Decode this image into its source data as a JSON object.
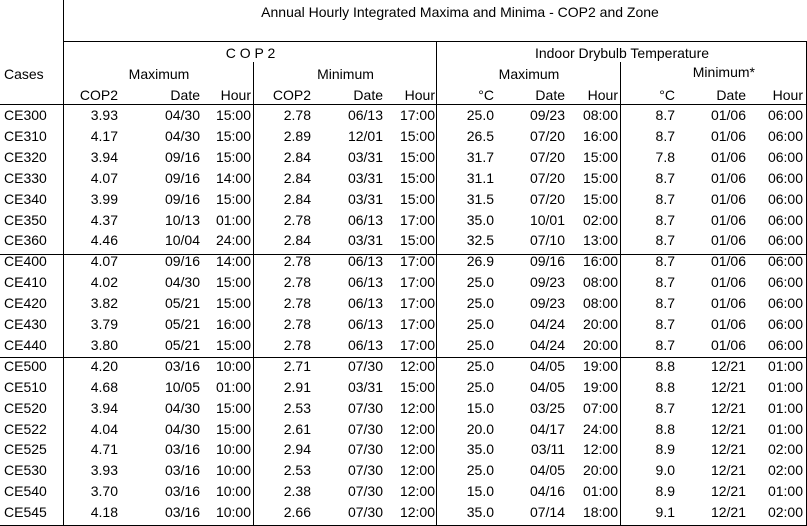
{
  "title": "Annual Hourly Integrated Maxima and Minima - COP2 and Zone",
  "groups": {
    "cop2": "C O P 2",
    "temp": "Indoor Drybulb Temperature"
  },
  "cases_label": "Cases",
  "subgroups": {
    "cop_max": "Maximum",
    "cop_min": "Minimum",
    "temp_max": "Maximum",
    "temp_min": "Minimum*"
  },
  "columns": [
    "COP2",
    "Date",
    "Hour",
    "COP2",
    "Date",
    "Hour",
    "°C",
    "Date",
    "Hour",
    "°C",
    "Date",
    "Hour"
  ],
  "rows": [
    [
      "CE300",
      "3.93",
      "04/30",
      "15:00",
      "2.78",
      "06/13",
      "17:00",
      "25.0",
      "09/23",
      "08:00",
      "8.7",
      "01/06",
      "06:00"
    ],
    [
      "CE310",
      "4.17",
      "04/30",
      "15:00",
      "2.89",
      "12/01",
      "15:00",
      "26.5",
      "07/20",
      "16:00",
      "8.7",
      "01/06",
      "06:00"
    ],
    [
      "CE320",
      "3.94",
      "09/16",
      "15:00",
      "2.84",
      "03/31",
      "15:00",
      "31.7",
      "07/20",
      "15:00",
      "7.8",
      "01/06",
      "06:00"
    ],
    [
      "CE330",
      "4.07",
      "09/16",
      "14:00",
      "2.84",
      "03/31",
      "15:00",
      "31.1",
      "07/20",
      "15:00",
      "8.7",
      "01/06",
      "06:00"
    ],
    [
      "CE340",
      "3.99",
      "09/16",
      "15:00",
      "2.84",
      "03/31",
      "15:00",
      "31.5",
      "07/20",
      "15:00",
      "8.7",
      "01/06",
      "06:00"
    ],
    [
      "CE350",
      "4.37",
      "10/13",
      "01:00",
      "2.78",
      "06/13",
      "17:00",
      "35.0",
      "10/01",
      "02:00",
      "8.7",
      "01/06",
      "06:00"
    ],
    [
      "CE360",
      "4.46",
      "10/04",
      "24:00",
      "2.84",
      "03/31",
      "15:00",
      "32.5",
      "07/10",
      "13:00",
      "8.7",
      "01/06",
      "06:00"
    ],
    [
      "CE400",
      "4.07",
      "09/16",
      "14:00",
      "2.78",
      "06/13",
      "17:00",
      "26.9",
      "09/16",
      "16:00",
      "8.7",
      "01/06",
      "06:00"
    ],
    [
      "CE410",
      "4.02",
      "04/30",
      "15:00",
      "2.78",
      "06/13",
      "17:00",
      "25.0",
      "09/23",
      "08:00",
      "8.7",
      "01/06",
      "06:00"
    ],
    [
      "CE420",
      "3.82",
      "05/21",
      "15:00",
      "2.78",
      "06/13",
      "17:00",
      "25.0",
      "09/23",
      "08:00",
      "8.7",
      "01/06",
      "06:00"
    ],
    [
      "CE430",
      "3.79",
      "05/21",
      "16:00",
      "2.78",
      "06/13",
      "17:00",
      "25.0",
      "04/24",
      "20:00",
      "8.7",
      "01/06",
      "06:00"
    ],
    [
      "CE440",
      "3.80",
      "05/21",
      "15:00",
      "2.78",
      "06/13",
      "17:00",
      "25.0",
      "04/24",
      "20:00",
      "8.7",
      "01/06",
      "06:00"
    ],
    [
      "CE500",
      "4.20",
      "03/16",
      "10:00",
      "2.71",
      "07/30",
      "12:00",
      "25.0",
      "04/05",
      "19:00",
      "8.8",
      "12/21",
      "01:00"
    ],
    [
      "CE510",
      "4.68",
      "10/05",
      "01:00",
      "2.91",
      "03/31",
      "15:00",
      "25.0",
      "04/05",
      "19:00",
      "8.8",
      "12/21",
      "01:00"
    ],
    [
      "CE520",
      "3.94",
      "04/30",
      "15:00",
      "2.53",
      "07/30",
      "12:00",
      "15.0",
      "03/25",
      "07:00",
      "8.7",
      "12/21",
      "01:00"
    ],
    [
      "CE522",
      "4.04",
      "04/30",
      "15:00",
      "2.61",
      "07/30",
      "12:00",
      "20.0",
      "04/17",
      "24:00",
      "8.8",
      "12/21",
      "01:00"
    ],
    [
      "CE525",
      "4.71",
      "03/16",
      "10:00",
      "2.94",
      "07/30",
      "12:00",
      "35.0",
      "03/11",
      "12:00",
      "8.9",
      "12/21",
      "02:00"
    ],
    [
      "CE530",
      "3.93",
      "03/16",
      "10:00",
      "2.53",
      "07/30",
      "12:00",
      "25.0",
      "04/05",
      "20:00",
      "9.0",
      "12/21",
      "02:00"
    ],
    [
      "CE540",
      "3.70",
      "03/16",
      "10:00",
      "2.38",
      "07/30",
      "12:00",
      "15.0",
      "04/16",
      "01:00",
      "8.9",
      "12/21",
      "01:00"
    ],
    [
      "CE545",
      "4.18",
      "03/16",
      "10:00",
      "2.66",
      "07/30",
      "12:00",
      "35.0",
      "07/14",
      "18:00",
      "9.1",
      "12/21",
      "02:00"
    ]
  ]
}
